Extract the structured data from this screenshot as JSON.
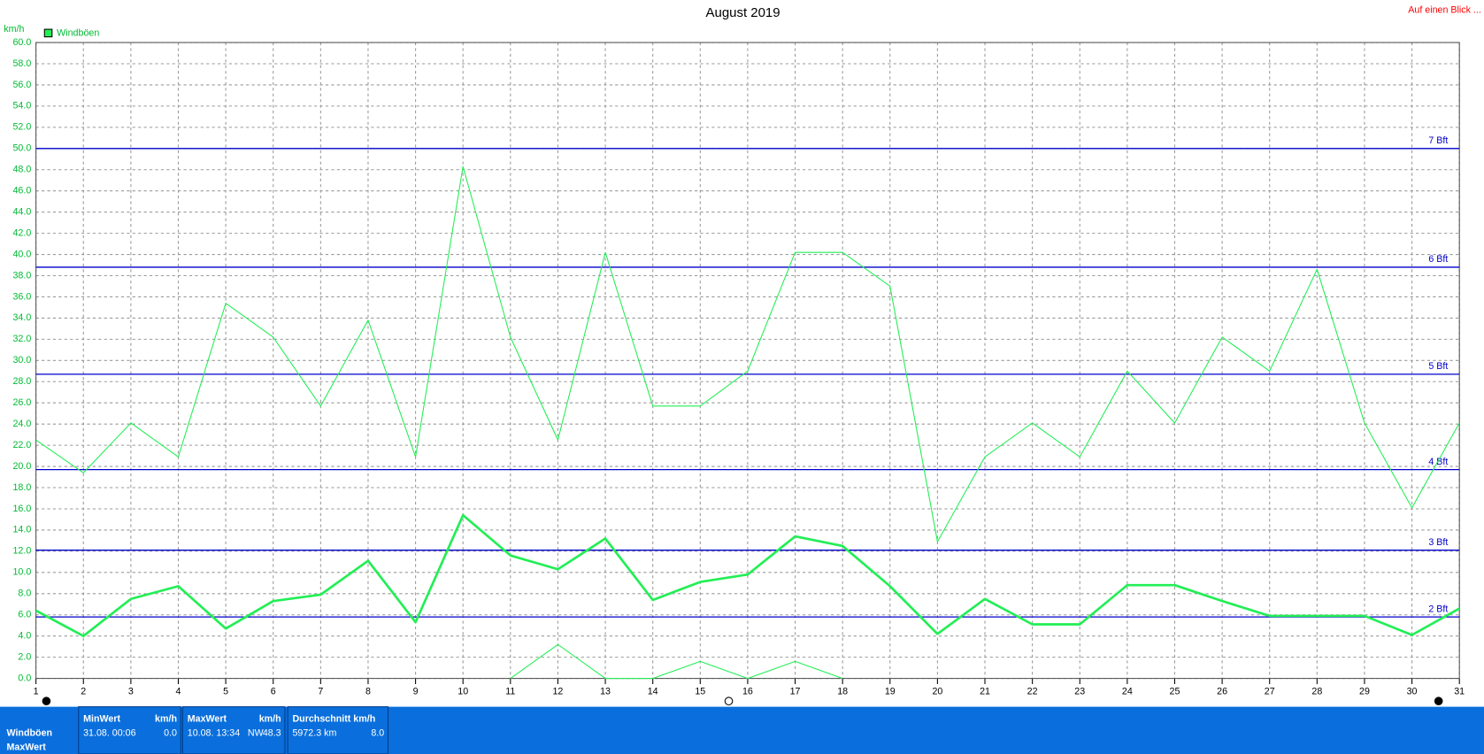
{
  "chart_data": {
    "type": "line",
    "title": "August 2019",
    "y_unit": "km/h",
    "link": "Auf einen Blick ...",
    "x": [
      1,
      2,
      3,
      4,
      5,
      6,
      7,
      8,
      9,
      10,
      11,
      12,
      13,
      14,
      15,
      16,
      17,
      18,
      19,
      20,
      21,
      22,
      23,
      24,
      25,
      26,
      27,
      28,
      29,
      30,
      31
    ],
    "xlim": [
      1,
      31
    ],
    "xticks": [
      1,
      2,
      3,
      4,
      5,
      6,
      7,
      8,
      9,
      10,
      11,
      12,
      13,
      14,
      15,
      16,
      17,
      18,
      19,
      20,
      21,
      22,
      23,
      24,
      25,
      26,
      27,
      28,
      29,
      30,
      31
    ],
    "ylim": [
      0,
      60
    ],
    "yticks": [
      {
        "value": 0,
        "label": "0.0"
      },
      {
        "value": 2,
        "label": "2.0"
      },
      {
        "value": 4,
        "label": "4.0"
      },
      {
        "value": 6,
        "label": "6.0"
      },
      {
        "value": 8,
        "label": "8.0"
      },
      {
        "value": 10,
        "label": "10.0"
      },
      {
        "value": 12,
        "label": "12.0"
      },
      {
        "value": 14,
        "label": "14.0"
      },
      {
        "value": 16,
        "label": "16.0"
      },
      {
        "value": 18,
        "label": "18.0"
      },
      {
        "value": 20,
        "label": "20.0"
      },
      {
        "value": 22,
        "label": "22.0"
      },
      {
        "value": 24,
        "label": "24.0"
      },
      {
        "value": 26,
        "label": "26.0"
      },
      {
        "value": 28,
        "label": "28.0"
      },
      {
        "value": 30,
        "label": "30.0"
      },
      {
        "value": 32,
        "label": "32.0"
      },
      {
        "value": 34,
        "label": "34.0"
      },
      {
        "value": 36,
        "label": "36.0"
      },
      {
        "value": 38,
        "label": "38.0"
      },
      {
        "value": 40,
        "label": "40.0"
      },
      {
        "value": 42,
        "label": "42.0"
      },
      {
        "value": 44,
        "label": "44.0"
      },
      {
        "value": 46,
        "label": "46.0"
      },
      {
        "value": 48,
        "label": "48.0"
      },
      {
        "value": 50,
        "label": "50.0"
      },
      {
        "value": 52,
        "label": "52.0"
      },
      {
        "value": 54,
        "label": "54.0"
      },
      {
        "value": 56,
        "label": "56.0"
      },
      {
        "value": 58,
        "label": "58.0"
      },
      {
        "value": 60,
        "label": "60.0"
      }
    ],
    "grid": true,
    "series": [
      {
        "name": "Windböen",
        "color": "#22ee55",
        "width": 1,
        "values": [
          22.5,
          19.4,
          24.1,
          20.9,
          35.4,
          32.2,
          25.7,
          33.8,
          20.9,
          48.3,
          32.2,
          22.5,
          40.2,
          25.7,
          25.7,
          29.0,
          40.2,
          40.2,
          37.0,
          12.9,
          20.9,
          24.1,
          20.9,
          29.0,
          24.1,
          32.2,
          29.0,
          38.6,
          24.1,
          16.1,
          24.1
        ]
      },
      {
        "color": "#22ee55",
        "width": 2.5,
        "values": [
          6.4,
          4.0,
          7.5,
          8.7,
          4.7,
          7.3,
          7.9,
          11.1,
          5.3,
          15.4,
          11.6,
          10.3,
          13.2,
          7.4,
          9.1,
          9.8,
          13.4,
          12.5,
          8.7,
          4.2,
          7.5,
          5.1,
          5.1,
          8.8,
          8.8,
          7.3,
          5.9,
          5.9,
          5.9,
          4.1,
          6.6
        ]
      },
      {
        "color": "#22ee55",
        "width": 1,
        "values": [
          null,
          null,
          null,
          null,
          null,
          null,
          null,
          null,
          null,
          null,
          0,
          3.2,
          0,
          0,
          1.6,
          0,
          1.6,
          0,
          null,
          null,
          null,
          null,
          null,
          null,
          null,
          null,
          null,
          null,
          null,
          null,
          null
        ]
      }
    ],
    "reference_lines": [
      {
        "value": 5.8,
        "label": "2 Bft"
      },
      {
        "value": 12.1,
        "label": "3 Bft"
      },
      {
        "value": 19.7,
        "label": "4 Bft"
      },
      {
        "value": 28.7,
        "label": "5 Bft"
      },
      {
        "value": 38.8,
        "label": "6 Bft"
      },
      {
        "value": 50.0,
        "label": "7 Bft"
      }
    ],
    "reference_color": "#0000cc",
    "legend": "top-left"
  },
  "summary": {
    "row_labels": [
      "Windböen",
      "MaxWert"
    ],
    "columns": [
      {
        "header": "MinWert",
        "unit": "km/h",
        "when": "31.08.  00:06",
        "value": "0.0"
      },
      {
        "header": "MaxWert",
        "unit": "km/h",
        "when": "10.08.  13:34",
        "dir": "NW",
        "value": "48.3"
      },
      {
        "header": "Durchschnitt km/h",
        "when": "5972.3 km",
        "value": "8.0"
      }
    ]
  }
}
